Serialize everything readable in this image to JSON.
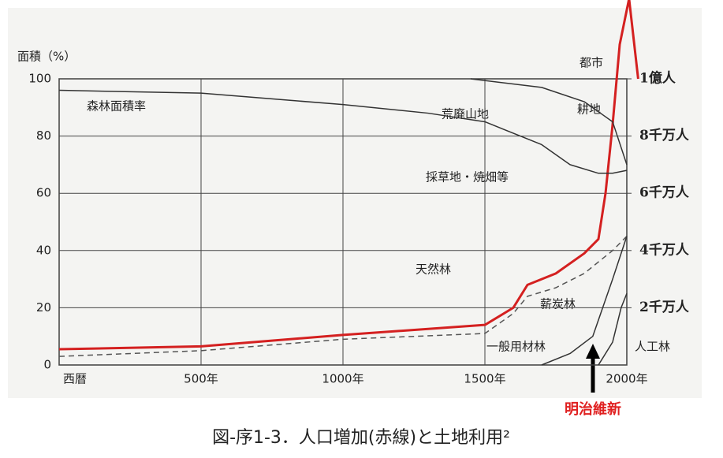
{
  "chart_data": {
    "type": "line",
    "title": "図-序1-3．人口増加(赤線)と土地利用²",
    "y_label": "面積（%）",
    "annotations": [
      "森林面積率",
      "荒廃山地",
      "耕地",
      "都市",
      "採草地・焼畑等",
      "天然林",
      "薪炭林",
      "一般用材林",
      "人工林",
      "明治維新"
    ],
    "xlim": [
      0,
      2000
    ],
    "xticks": [
      {
        "value": 0,
        "label": "西暦"
      },
      {
        "value": 500,
        "label": "500年"
      },
      {
        "value": 1000,
        "label": "1000年"
      },
      {
        "value": 1500,
        "label": "1500年"
      },
      {
        "value": 2000,
        "label": "2000年"
      }
    ],
    "ylim": [
      0,
      100
    ],
    "yticks": [
      0,
      20,
      40,
      60,
      80,
      100
    ],
    "y2lim": [
      0,
      10000
    ],
    "y2ticks": [
      {
        "value": 2000,
        "label": "2千万人"
      },
      {
        "value": 4000,
        "label": "4千万人"
      },
      {
        "value": 6000,
        "label": "6千万人"
      },
      {
        "value": 8000,
        "label": "8千万人"
      },
      {
        "value": 10000,
        "label": "1億人"
      }
    ],
    "grid": true,
    "series": [
      {
        "color": "#d42020",
        "axis": "y2",
        "style": "solid",
        "x": [
          0,
          500,
          1000,
          1500,
          1600,
          1650,
          1750,
          1850,
          1900,
          1925,
          1950,
          1975,
          2008,
          2040
        ],
        "values": [
          550,
          650,
          1050,
          1400,
          2000,
          2800,
          3200,
          3900,
          4400,
          6000,
          8400,
          11200,
          12800,
          10000
        ]
      },
      {
        "color": "#555555",
        "style": "dashed",
        "x": [
          0,
          500,
          1000,
          1500,
          1600,
          1650,
          1750,
          1850,
          1950,
          2000
        ],
        "values": [
          3,
          5,
          9,
          11,
          18,
          24,
          27,
          32,
          40,
          45
        ]
      },
      {
        "color": "#333333",
        "style": "solid",
        "x": [
          0,
          500,
          1000,
          1300,
          1500,
          1700,
          1800,
          1900,
          1950,
          2000
        ],
        "values": [
          96,
          95,
          91,
          88,
          85,
          77,
          70,
          67,
          67,
          68
        ]
      },
      {
        "color": "#333333",
        "style": "solid",
        "x": [
          1450,
          1700,
          1850,
          1950,
          2000
        ],
        "values": [
          100,
          97,
          92,
          85,
          70
        ]
      },
      {
        "color": "#333333",
        "style": "solid",
        "x": [
          1700,
          1800,
          1880,
          1950,
          2000
        ],
        "values": [
          0,
          4,
          10,
          30,
          45
        ]
      },
      {
        "color": "#333333",
        "style": "solid",
        "x": [
          1900,
          1950,
          1980,
          2000
        ],
        "values": [
          0,
          8,
          20,
          25
        ]
      }
    ]
  }
}
